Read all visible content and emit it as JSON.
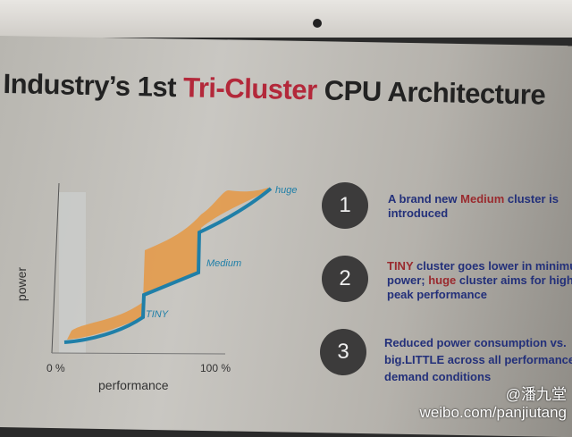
{
  "slide": {
    "title": {
      "part1": "Industry’s 1st ",
      "highlight": "Tri-Cluster",
      "part2": " CPU Architecture"
    },
    "chart": {
      "ylabel": "power",
      "xlabel": "performance",
      "x_min_label": "0 %",
      "x_max_label": "100 %",
      "labels": {
        "tiny": "TINY",
        "medium": "Medium",
        "huge": "huge"
      },
      "colors": {
        "line": "#1f7fa8",
        "fill": "#e39a4a"
      }
    },
    "points": [
      {
        "number": "1",
        "segments": [
          {
            "t": "A brand new ",
            "c": "blue"
          },
          {
            "t": "Medium",
            "c": "red"
          },
          {
            "t": " cluster is",
            "c": "blue"
          }
        ],
        "line2": "introduced"
      },
      {
        "number": "2",
        "line1_red": "TINY",
        "line1": " cluster goes lower in minimu",
        "line2_a": "power; ",
        "line2_red": "huge",
        "line2_b": " cluster aims for high",
        "line3": "peak performance"
      },
      {
        "number": "3",
        "line1": "Reduced power consumption vs.",
        "line2": "big.LITTLE across all performance",
        "line3": "demand conditions"
      }
    ]
  },
  "watermark": {
    "handle": "@潘九堂",
    "url": "weibo.com/panjiutang"
  }
}
